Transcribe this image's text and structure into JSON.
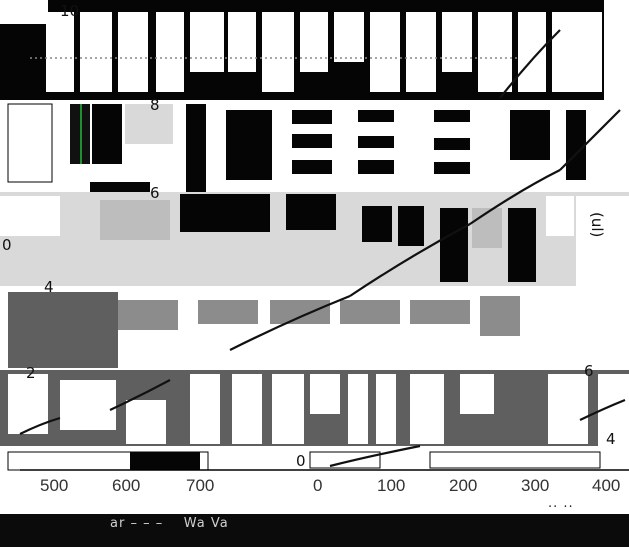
{
  "colors": {
    "black": "#050505",
    "dark_gray": "#5f5f5f",
    "mid_gray": "#8c8c8c",
    "light_gray": "#d9d9d9",
    "white": "#ffffff",
    "curve": "#111111",
    "accent_green": "#1f8f2f"
  },
  "left_axis": {
    "top_tick": "10",
    "ticks": [
      "8",
      "6",
      "4",
      "2",
      "0"
    ]
  },
  "right_plot": {
    "zero_label": "0",
    "bracket_labels": [
      "(ul)",
      "6",
      "4"
    ]
  },
  "x_axis_left": {
    "ticks": [
      "500",
      "600",
      "700"
    ]
  },
  "x_axis_right": {
    "ticks": [
      "0",
      "100",
      "200",
      "300",
      "400"
    ]
  },
  "bottom_strip": {
    "text_left": "ar – – –    Wa Va",
    "text_right": "·· ··"
  }
}
